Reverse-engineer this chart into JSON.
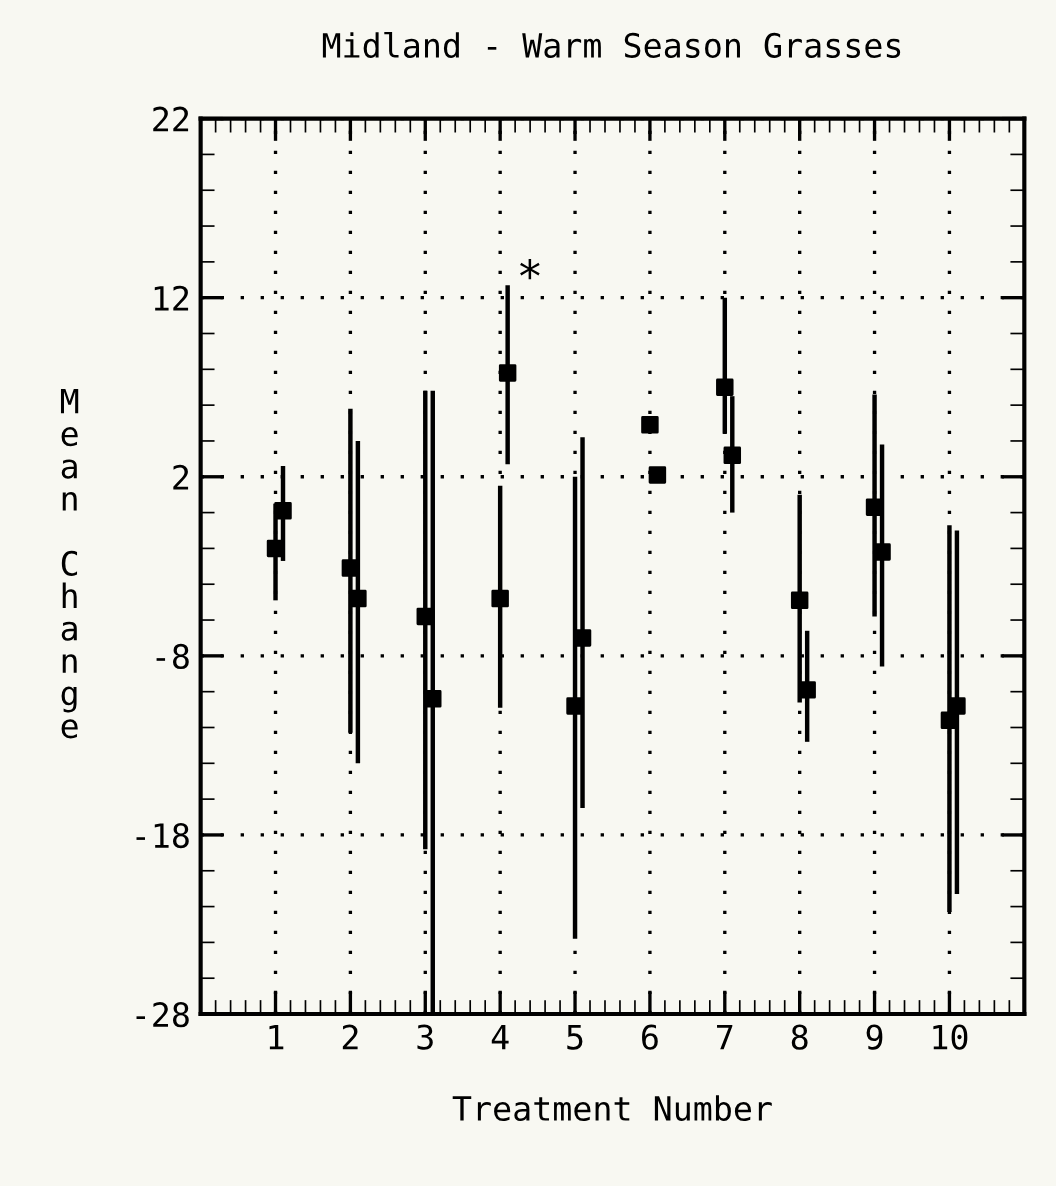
{
  "chart_data": {
    "type": "scatter",
    "title": "Midland - Warm Season Grasses",
    "xlabel": "Treatment Number",
    "ylabel": "Mean Change",
    "xlim": [
      0,
      11
    ],
    "xticks": [
      1,
      2,
      3,
      4,
      5,
      6,
      7,
      8,
      9,
      10
    ],
    "ylim": [
      -28,
      22
    ],
    "yticks": [
      -28,
      -18,
      -8,
      2,
      12,
      22
    ],
    "grid": true,
    "marker": "square",
    "legend": false,
    "series": [
      {
        "color": "#000000",
        "x": [
          1,
          2,
          3,
          4,
          5,
          6,
          7,
          8,
          9,
          10
        ],
        "values": [
          -2.0,
          -3.1,
          -5.8,
          -4.8,
          -10.8,
          4.9,
          7.0,
          -4.9,
          0.3,
          -11.6
        ],
        "errors": [
          [
            -4.9,
            0.5
          ],
          [
            -12.3,
            5.8
          ],
          [
            -18.8,
            6.8
          ],
          [
            -10.9,
            1.5
          ],
          [
            -23.8,
            2.0
          ],
          null,
          [
            4.4,
            12.0
          ],
          [
            -10.6,
            1.0
          ],
          [
            -5.8,
            6.6
          ],
          [
            -22.3,
            -0.7
          ]
        ]
      },
      {
        "color": "#000000",
        "x": [
          1.1,
          2.1,
          3.1,
          4.1,
          5.1,
          6.1,
          7.1,
          8.1,
          9.1,
          10.1
        ],
        "values": [
          0.1,
          -4.8,
          -10.4,
          7.8,
          -7.0,
          2.1,
          3.2,
          -9.9,
          -2.2,
          -10.8
        ],
        "errors": [
          [
            -2.7,
            2.6
          ],
          [
            -14.0,
            4.0
          ],
          [
            -28,
            6.8
          ],
          [
            2.7,
            12.7
          ],
          [
            -16.5,
            4.2
          ],
          null,
          [
            0.0,
            6.5
          ],
          [
            -12.8,
            -6.6
          ],
          [
            -8.6,
            3.8
          ],
          [
            -21.3,
            -1.0
          ]
        ]
      }
    ],
    "annotations": [
      {
        "text": "*",
        "x": 4.1,
        "y": 12.7
      }
    ]
  }
}
